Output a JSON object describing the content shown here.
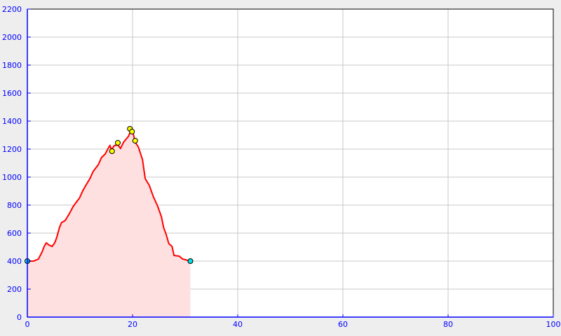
{
  "chart_data": {
    "type": "area",
    "title": "",
    "xlabel": "",
    "ylabel": "",
    "xlim": [
      0,
      100
    ],
    "ylim": [
      0,
      2200
    ],
    "grid": true,
    "x_ticks": [
      "0",
      "20",
      "40",
      "60",
      "80",
      "100"
    ],
    "y_ticks": [
      "0",
      "200",
      "400",
      "600",
      "800",
      "1000",
      "1200",
      "1400",
      "1600",
      "1800",
      "2000",
      "2200"
    ],
    "colors": {
      "line": "#ff0000",
      "fill": "#ffe0e0",
      "axis": "#0000ff",
      "grid": "#c8c8c8",
      "endpoint_marker": "#00e0e0",
      "waypoint_marker": "#ffff00"
    },
    "series": [
      {
        "x": [
          0,
          1.2,
          2.1,
          2.8,
          3.2,
          3.6,
          4.1,
          4.7,
          5.2,
          5.6,
          6.1,
          6.5,
          7.2,
          8,
          8.7,
          9.2,
          9.9,
          10.5,
          11.1,
          11.9,
          12.5,
          13.5,
          14.1,
          14.8,
          15.5,
          15.7,
          16,
          16.5,
          17.2,
          17.7,
          18.3,
          19.2,
          19.6,
          20.1,
          20.5,
          21.1,
          21.9,
          22.4,
          23.2,
          23.9,
          24.8,
          25.5,
          25.9,
          26.4,
          26.9,
          27.5,
          27.9,
          28.9,
          29.5,
          30.5,
          31
        ],
        "y": [
          400,
          400,
          415,
          465,
          505,
          530,
          515,
          505,
          530,
          570,
          640,
          675,
          690,
          740,
          790,
          815,
          850,
          900,
          940,
          990,
          1040,
          1090,
          1140,
          1165,
          1215,
          1225,
          1195,
          1225,
          1230,
          1205,
          1250,
          1290,
          1325,
          1315,
          1250,
          1215,
          1125,
          990,
          940,
          865,
          790,
          715,
          640,
          590,
          525,
          505,
          440,
          435,
          415,
          405,
          400
        ]
      }
    ],
    "endpoint_markers": [
      {
        "x": 0,
        "y": 400
      },
      {
        "x": 31,
        "y": 400
      }
    ],
    "waypoint_markers": [
      {
        "x": 16.1,
        "y": 1185
      },
      {
        "x": 17.2,
        "y": 1245
      },
      {
        "x": 19.5,
        "y": 1345
      },
      {
        "x": 19.9,
        "y": 1325
      },
      {
        "x": 20.5,
        "y": 1260
      }
    ]
  }
}
